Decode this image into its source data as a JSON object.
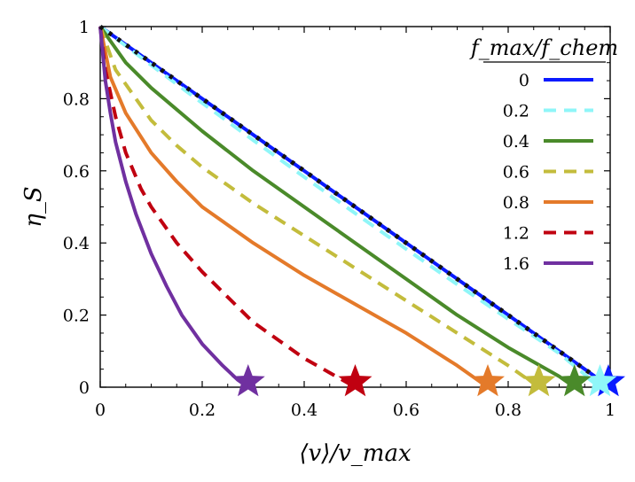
{
  "chart_data": {
    "type": "line",
    "xlabel": "⟨v⟩/v_max",
    "ylabel": "η_S",
    "xlim": [
      0,
      1
    ],
    "ylim": [
      0,
      1
    ],
    "x_ticks": [
      0,
      0.2,
      0.4,
      0.6,
      0.8,
      1
    ],
    "y_ticks": [
      0,
      0.2,
      0.4,
      0.6,
      0.8,
      1
    ],
    "x_tick_labels": [
      "0",
      "0.2",
      "0.4",
      "0.6",
      "0.8",
      "1"
    ],
    "y_tick_labels": [
      "0",
      "0.2",
      "0.4",
      "0.6",
      "0.8",
      "1"
    ],
    "grid": false,
    "legend": {
      "title": "f_max/f_chem",
      "placement": "top-right"
    },
    "reference_line": {
      "style": "dotted",
      "color": "#111111",
      "x": [
        0,
        1
      ],
      "y": [
        1,
        0
      ]
    },
    "series": [
      {
        "name": "0",
        "color": "#0a1aff",
        "dash": "solid",
        "x": [
          0,
          1.0
        ],
        "y": [
          1,
          0
        ],
        "endpoint": 1.0
      },
      {
        "name": "0.2",
        "color": "#8ff6f8",
        "dash": "dashed",
        "x": [
          0,
          0.1,
          0.2,
          0.3,
          0.4,
          0.5,
          0.6,
          0.7,
          0.8,
          0.9,
          0.98
        ],
        "y": [
          1,
          0.893,
          0.788,
          0.685,
          0.583,
          0.482,
          0.383,
          0.285,
          0.189,
          0.094,
          0.0
        ],
        "endpoint": 0.98
      },
      {
        "name": "0.4",
        "color": "#4a8a2a",
        "dash": "solid",
        "x": [
          0,
          0.05,
          0.1,
          0.2,
          0.3,
          0.4,
          0.5,
          0.6,
          0.7,
          0.8,
          0.9,
          0.93
        ],
        "y": [
          1,
          0.9,
          0.83,
          0.71,
          0.6,
          0.5,
          0.4,
          0.3,
          0.2,
          0.11,
          0.03,
          0.0
        ],
        "endpoint": 0.93
      },
      {
        "name": "0.6",
        "color": "#c3bc3c",
        "dash": "dashed",
        "x": [
          0,
          0.03,
          0.07,
          0.1,
          0.15,
          0.2,
          0.3,
          0.4,
          0.5,
          0.6,
          0.7,
          0.8,
          0.86
        ],
        "y": [
          1,
          0.88,
          0.8,
          0.74,
          0.67,
          0.61,
          0.51,
          0.42,
          0.33,
          0.24,
          0.15,
          0.06,
          0.0
        ],
        "endpoint": 0.86
      },
      {
        "name": "0.8",
        "color": "#e47a2a",
        "dash": "solid",
        "x": [
          0,
          0.02,
          0.05,
          0.1,
          0.15,
          0.2,
          0.3,
          0.4,
          0.5,
          0.6,
          0.7,
          0.76
        ],
        "y": [
          1,
          0.86,
          0.76,
          0.65,
          0.57,
          0.5,
          0.4,
          0.31,
          0.23,
          0.15,
          0.06,
          0.0
        ],
        "endpoint": 0.76
      },
      {
        "name": "1.2",
        "color": "#c00010",
        "dash": "dashed",
        "x": [
          0,
          0.01,
          0.03,
          0.05,
          0.08,
          0.1,
          0.15,
          0.2,
          0.25,
          0.3,
          0.35,
          0.4,
          0.45,
          0.5
        ],
        "y": [
          1,
          0.88,
          0.75,
          0.65,
          0.55,
          0.5,
          0.4,
          0.32,
          0.25,
          0.18,
          0.13,
          0.08,
          0.04,
          0.0
        ],
        "endpoint": 0.5
      },
      {
        "name": "1.6",
        "color": "#7030a0",
        "dash": "solid",
        "x": [
          0,
          0.01,
          0.02,
          0.03,
          0.05,
          0.07,
          0.1,
          0.13,
          0.16,
          0.2,
          0.24,
          0.27,
          0.29
        ],
        "y": [
          1,
          0.85,
          0.76,
          0.68,
          0.57,
          0.48,
          0.37,
          0.28,
          0.2,
          0.12,
          0.06,
          0.02,
          0.0
        ],
        "endpoint": 0.29
      }
    ]
  }
}
